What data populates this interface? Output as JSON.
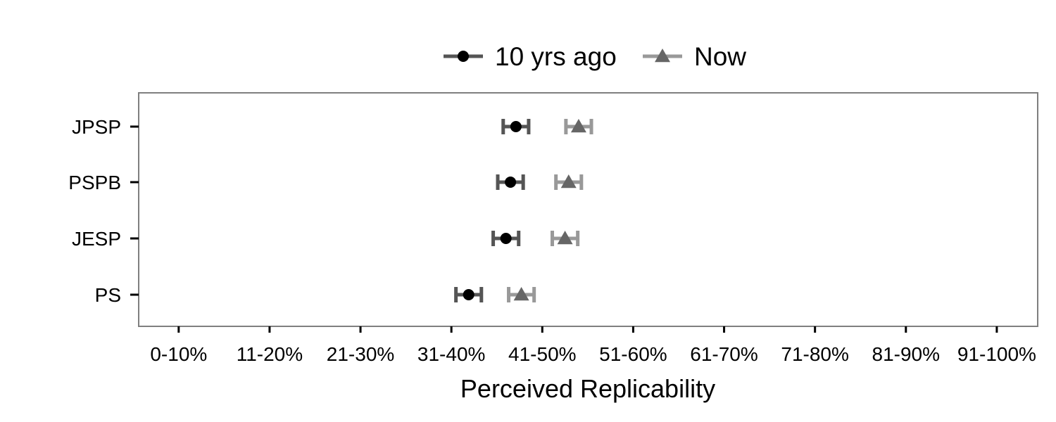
{
  "chart_data": {
    "type": "scatter",
    "xlabel": "Perceived Replicability",
    "ylabel": "",
    "x_categories": [
      "0-10%",
      "11-20%",
      "21-30%",
      "31-40%",
      "41-50%",
      "51-60%",
      "61-70%",
      "71-80%",
      "81-90%",
      "91-100%"
    ],
    "xlim": [
      0.56,
      10.45
    ],
    "y_categories": [
      "JPSP",
      "PSPB",
      "JESP",
      "PS"
    ],
    "legend_position": "top",
    "grid": false,
    "series": [
      {
        "name": "10 yrs ago",
        "marker": "circle",
        "color": "#555555",
        "marker_color": "#000000",
        "points": [
          {
            "category": "JPSP",
            "mean": 4.71,
            "low": 4.57,
            "high": 4.85
          },
          {
            "category": "PSPB",
            "mean": 4.65,
            "low": 4.51,
            "high": 4.79
          },
          {
            "category": "JESP",
            "mean": 4.6,
            "low": 4.46,
            "high": 4.74
          },
          {
            "category": "PS",
            "mean": 4.19,
            "low": 4.05,
            "high": 4.33
          }
        ]
      },
      {
        "name": "Now",
        "marker": "triangle",
        "color": "#999999",
        "marker_color": "#666666",
        "points": [
          {
            "category": "JPSP",
            "mean": 5.4,
            "low": 5.26,
            "high": 5.54
          },
          {
            "category": "PSPB",
            "mean": 5.29,
            "low": 5.15,
            "high": 5.43
          },
          {
            "category": "JESP",
            "mean": 5.25,
            "low": 5.11,
            "high": 5.39
          },
          {
            "category": "PS",
            "mean": 4.77,
            "low": 4.63,
            "high": 4.91
          }
        ]
      }
    ]
  }
}
